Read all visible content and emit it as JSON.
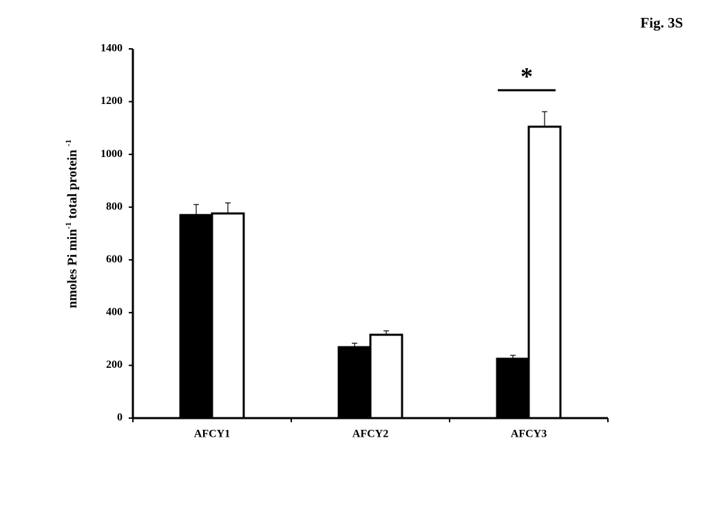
{
  "chart_data": {
    "type": "bar",
    "title": "Fig. 3S",
    "ylabel": [
      {
        "text": "nmoles Pi min"
      },
      {
        "text": "-1",
        "sup": true
      },
      {
        "text": " total protein "
      },
      {
        "text": "-1",
        "sup": true
      }
    ],
    "categories": [
      "AFCY1",
      "AFCY2",
      "AFCY3"
    ],
    "series": [
      {
        "color": "#000000",
        "values": [
          770,
          269,
          225
        ],
        "errors": [
          40,
          15,
          13
        ]
      },
      {
        "color": "#ffffff",
        "values": [
          776,
          316,
          1105
        ],
        "errors": [
          40,
          15,
          57
        ]
      }
    ],
    "ylim": [
      0,
      1400
    ],
    "yticks": [
      0,
      200,
      400,
      600,
      800,
      1000,
      1200,
      1400
    ],
    "annotations": [
      {
        "text": "*",
        "category": 2
      }
    ]
  }
}
